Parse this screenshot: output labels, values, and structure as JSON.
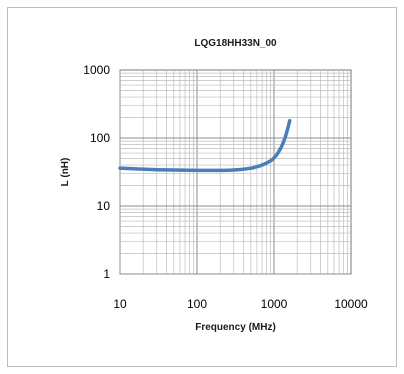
{
  "chart_data": {
    "type": "line",
    "title": "LQG18HH33N_00",
    "xlabel": "Frequency (MHz)",
    "ylabel": "L (nH)",
    "x_scale": "log",
    "y_scale": "log",
    "xlim": [
      10,
      10000
    ],
    "ylim": [
      1,
      1000
    ],
    "x_ticks": [
      "10",
      "100",
      "1000",
      "10000"
    ],
    "y_ticks": [
      "1",
      "10",
      "100",
      "1000"
    ],
    "grid": true,
    "legend": "none",
    "series": [
      {
        "color": "#4a7ebb",
        "x": [
          10,
          15,
          20,
          30,
          50,
          100,
          200,
          300,
          500,
          700,
          900,
          1000,
          1100,
          1200,
          1300,
          1400,
          1500,
          1600
        ],
        "y": [
          36,
          35.3,
          34.8,
          34.2,
          33.8,
          33.4,
          33.4,
          33.8,
          36,
          40,
          46,
          51,
          58,
          68,
          82,
          103,
          135,
          180
        ]
      }
    ]
  }
}
